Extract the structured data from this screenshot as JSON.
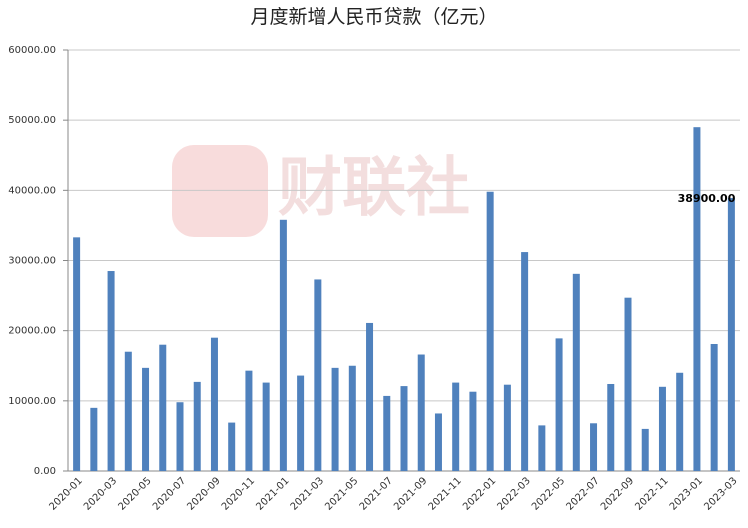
{
  "chart_data": {
    "type": "bar",
    "title": "月度新增人民币贷款（亿元）",
    "watermark": "财联社",
    "categories": [
      "2020-01",
      null,
      "2020-03",
      null,
      "2020-05",
      null,
      "2020-07",
      null,
      "2020-09",
      null,
      "2020-11",
      null,
      "2021-01",
      null,
      "2021-03",
      null,
      "2021-05",
      null,
      "2021-07",
      null,
      "2021-09",
      null,
      "2021-11",
      null,
      "2022-01",
      null,
      "2022-03",
      null,
      "2022-05",
      null,
      "2022-07",
      null,
      "2022-09",
      null,
      "2022-11",
      null,
      "2023-01",
      null,
      "2023-03"
    ],
    "values": [
      33300,
      9000,
      28500,
      17000,
      14700,
      18000,
      9800,
      12700,
      19000,
      6900,
      14300,
      12600,
      35800,
      13600,
      27300,
      14700,
      15000,
      21100,
      10700,
      12100,
      16600,
      8200,
      12600,
      11300,
      39800,
      12300,
      31200,
      6500,
      18900,
      28100,
      6800,
      12400,
      24700,
      6000,
      12000,
      14000,
      49000,
      18100,
      38900
    ],
    "value_labels": [
      null,
      null,
      null,
      null,
      null,
      null,
      null,
      null,
      null,
      null,
      null,
      null,
      null,
      null,
      null,
      null,
      null,
      null,
      null,
      null,
      null,
      null,
      null,
      null,
      null,
      null,
      null,
      null,
      null,
      null,
      null,
      null,
      null,
      null,
      null,
      null,
      null,
      null,
      "38900.00"
    ],
    "color": "#4f81bd",
    "ylim": [
      0,
      60000
    ],
    "yticks": [
      {
        "value": 0,
        "label": "0.00"
      },
      {
        "value": 10000,
        "label": "10000.00"
      },
      {
        "value": 20000,
        "label": "20000.00"
      },
      {
        "value": 30000,
        "label": "30000.00"
      },
      {
        "value": 40000,
        "label": "40000.00"
      },
      {
        "value": 50000,
        "label": "50000.00"
      },
      {
        "value": 60000,
        "label": "60000.00"
      }
    ],
    "grid": true
  }
}
